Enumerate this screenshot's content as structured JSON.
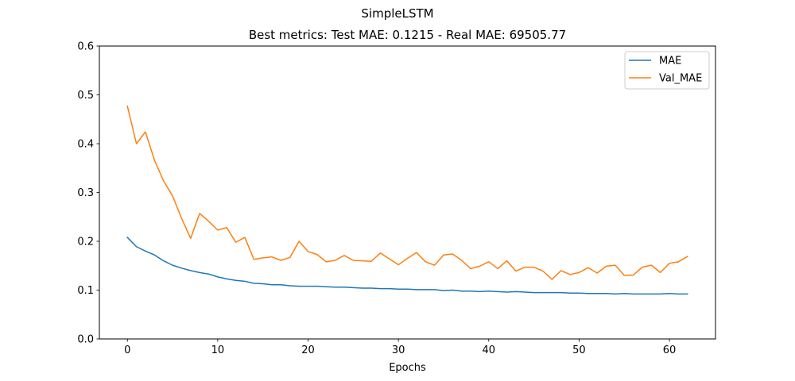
{
  "chart_data": {
    "type": "line",
    "suptitle": "SimpleLSTM",
    "title": "Best metrics: Test MAE: 0.1215 - Real MAE: 69505.77",
    "xlabel": "Epochs",
    "ylabel": "",
    "xlim": [
      -3.1,
      65.1
    ],
    "ylim": [
      0.0,
      0.6
    ],
    "xticks": [
      "0",
      "10",
      "20",
      "30",
      "40",
      "50",
      "60"
    ],
    "yticks": [
      "0.0",
      "0.1",
      "0.2",
      "0.3",
      "0.4",
      "0.5",
      "0.6"
    ],
    "grid": false,
    "legend_position": "upper right",
    "series": [
      {
        "name": "MAE",
        "color": "#1f77b4",
        "x": [
          0,
          1,
          2,
          3,
          4,
          5,
          6,
          7,
          8,
          9,
          10,
          11,
          12,
          13,
          14,
          15,
          16,
          17,
          18,
          19,
          20,
          21,
          22,
          23,
          24,
          25,
          26,
          27,
          28,
          29,
          30,
          31,
          32,
          33,
          34,
          35,
          36,
          37,
          38,
          39,
          40,
          41,
          42,
          43,
          44,
          45,
          46,
          47,
          48,
          49,
          50,
          51,
          52,
          53,
          54,
          55,
          56,
          57,
          58,
          59,
          60,
          61,
          62
        ],
        "values": [
          0.208,
          0.189,
          0.18,
          0.172,
          0.16,
          0.151,
          0.145,
          0.14,
          0.136,
          0.133,
          0.127,
          0.123,
          0.12,
          0.118,
          0.114,
          0.113,
          0.111,
          0.111,
          0.109,
          0.108,
          0.108,
          0.108,
          0.107,
          0.106,
          0.106,
          0.105,
          0.104,
          0.104,
          0.103,
          0.103,
          0.102,
          0.102,
          0.101,
          0.101,
          0.101,
          0.099,
          0.1,
          0.098,
          0.098,
          0.097,
          0.098,
          0.097,
          0.096,
          0.097,
          0.096,
          0.095,
          0.095,
          0.095,
          0.095,
          0.094,
          0.094,
          0.093,
          0.093,
          0.093,
          0.092,
          0.093,
          0.092,
          0.092,
          0.092,
          0.092,
          0.093,
          0.092,
          0.092
        ]
      },
      {
        "name": "Val_MAE",
        "color": "#ff7f0e",
        "x": [
          0,
          1,
          2,
          3,
          4,
          5,
          6,
          7,
          8,
          9,
          10,
          11,
          12,
          13,
          14,
          15,
          16,
          17,
          18,
          19,
          20,
          21,
          22,
          23,
          24,
          25,
          26,
          27,
          28,
          29,
          30,
          31,
          32,
          33,
          34,
          35,
          36,
          37,
          38,
          39,
          40,
          41,
          42,
          43,
          44,
          45,
          46,
          47,
          48,
          49,
          50,
          51,
          52,
          53,
          54,
          55,
          56,
          57,
          58,
          59,
          60,
          61,
          62
        ],
        "values": [
          0.477,
          0.4,
          0.424,
          0.366,
          0.324,
          0.293,
          0.247,
          0.206,
          0.257,
          0.241,
          0.223,
          0.228,
          0.198,
          0.208,
          0.163,
          0.166,
          0.168,
          0.161,
          0.167,
          0.2,
          0.179,
          0.173,
          0.158,
          0.161,
          0.171,
          0.161,
          0.16,
          0.159,
          0.176,
          0.164,
          0.152,
          0.165,
          0.177,
          0.158,
          0.151,
          0.172,
          0.174,
          0.161,
          0.144,
          0.149,
          0.158,
          0.144,
          0.16,
          0.139,
          0.147,
          0.147,
          0.139,
          0.122,
          0.14,
          0.132,
          0.136,
          0.146,
          0.135,
          0.149,
          0.151,
          0.13,
          0.131,
          0.147,
          0.151,
          0.136,
          0.155,
          0.158,
          0.169
        ]
      }
    ]
  }
}
